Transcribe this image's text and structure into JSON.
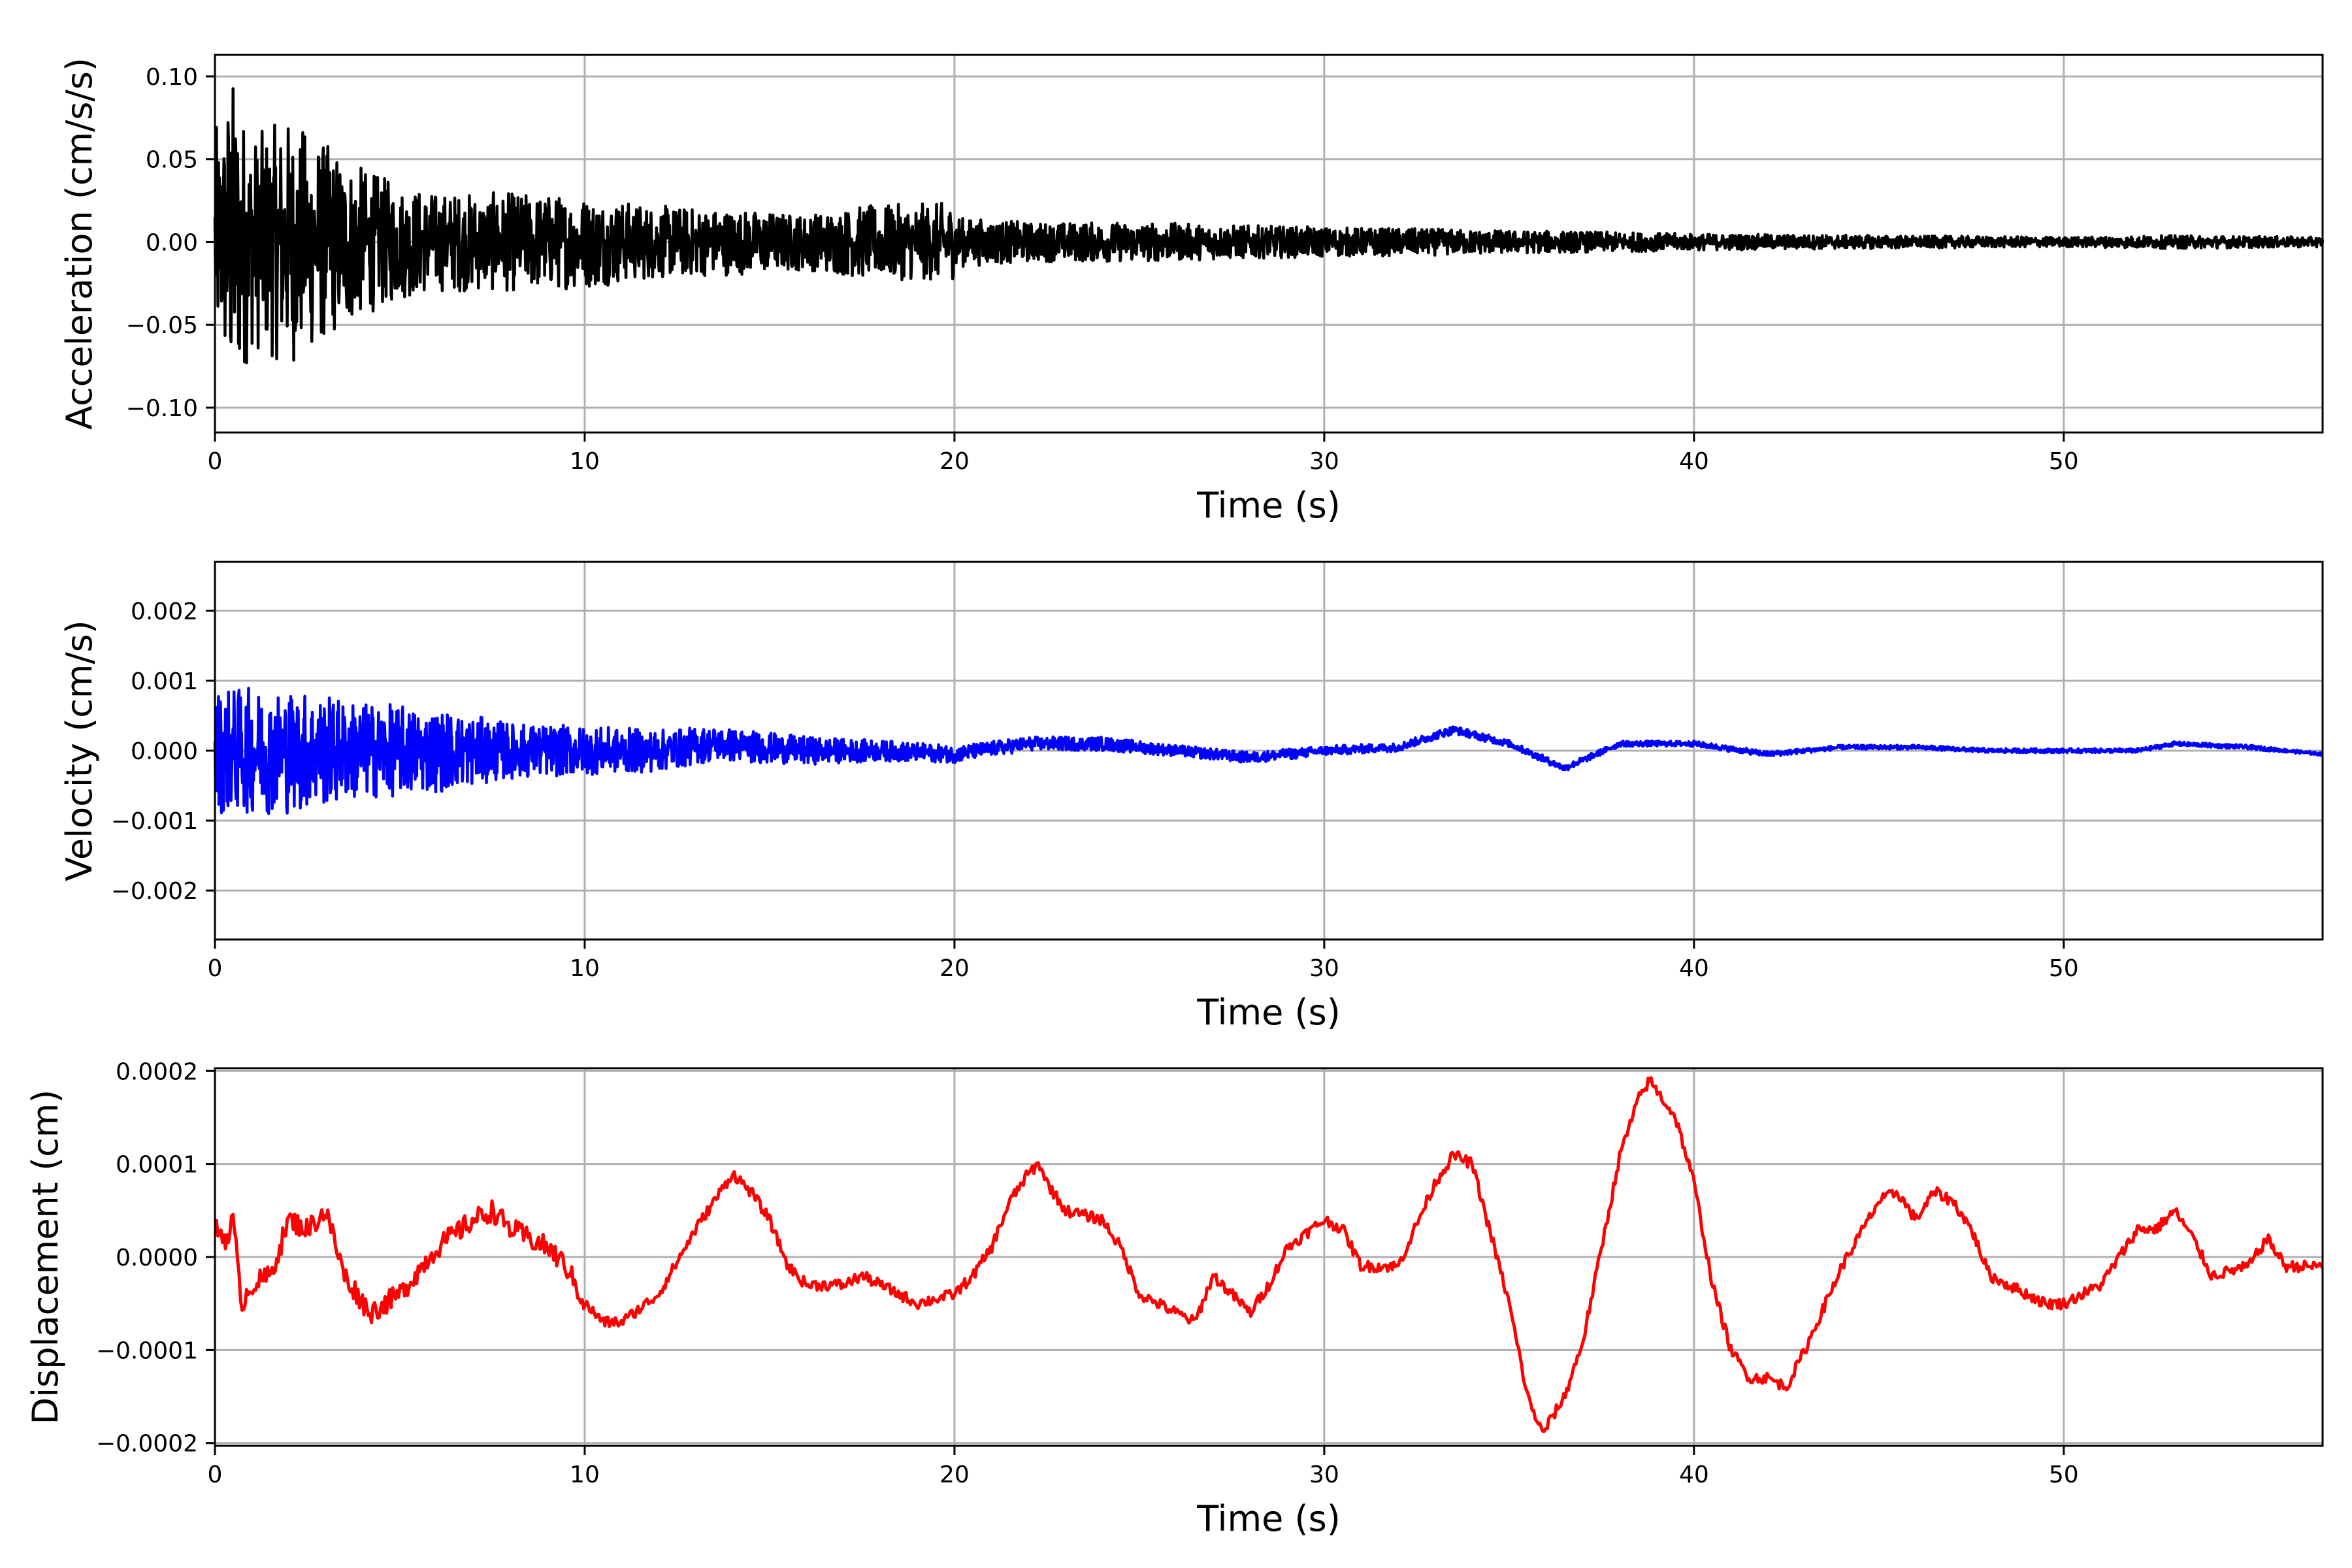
{
  "chart_data": [
    {
      "type": "line",
      "xlabel": "Time (s)",
      "ylabel": "Acceleration (cm/s/s)",
      "xlim": [
        0,
        57
      ],
      "ylim": [
        -0.115,
        0.113
      ],
      "xticks": [
        0,
        10,
        20,
        30,
        40,
        50
      ],
      "yticks": [
        -0.1,
        -0.05,
        0.0,
        0.05,
        0.1
      ],
      "ytick_labels": [
        "−0.10",
        "−0.05",
        "0.00",
        "0.05",
        "0.10"
      ],
      "grid": true,
      "series": [
        {
          "color": "#000000",
          "x": [
            0,
            0.2,
            0.4,
            0.45,
            0.6,
            1.0,
            1.5,
            2.0,
            3.0,
            4.0,
            5.0,
            6.0,
            8.0,
            10.0,
            12.0,
            14.0,
            16.0,
            17.5,
            19.9,
            20.2,
            22.0,
            25.0,
            28.0,
            30.0,
            33.0,
            35.0,
            38.0,
            40.0,
            45.0,
            50.0,
            53.0,
            57.0
          ],
          "amplitude": [
            0.07,
            0.07,
            0.1,
            0.104,
            0.09,
            0.065,
            0.07,
            0.075,
            0.06,
            0.045,
            0.035,
            0.03,
            0.03,
            0.028,
            0.022,
            0.02,
            0.017,
            0.022,
            0.024,
            0.015,
            0.012,
            0.012,
            0.01,
            0.009,
            0.008,
            0.007,
            0.006,
            0.005,
            0.004,
            0.003,
            0.004,
            0.003
          ]
        }
      ]
    },
    {
      "type": "line",
      "xlabel": "Time (s)",
      "ylabel": "Velocity (cm/s)",
      "xlim": [
        0,
        57
      ],
      "ylim": [
        -0.0027,
        0.0027
      ],
      "xticks": [
        0,
        10,
        20,
        30,
        40,
        50
      ],
      "yticks": [
        -0.002,
        -0.001,
        0.0,
        0.001,
        0.002
      ],
      "ytick_labels": [
        "−0.002",
        "−0.001",
        "0.000",
        "0.001",
        "0.002"
      ],
      "grid": true,
      "series": [
        {
          "color": "#0000ff",
          "x": [
            0,
            1,
            2,
            3,
            4,
            6,
            8,
            10,
            12,
            13.5,
            16,
            18,
            20,
            22,
            24,
            26,
            28,
            30,
            32,
            33.5,
            35,
            36.5,
            38,
            40,
            42,
            44,
            46,
            48,
            50,
            52,
            53,
            55,
            57
          ],
          "baseline": [
            0,
            0,
            0,
            0,
            0,
            0,
            0,
            0,
            0,
            0.0001,
            0,
            0,
            -5e-05,
            0.0001,
            0.0001,
            0,
            -0.0001,
            0,
            5e-05,
            0.0003,
            0.0001,
            -0.00025,
            0.0001,
            0.0001,
            -5e-05,
            5e-05,
            5e-05,
            0,
            0,
            0,
            0.0001,
            5e-05,
            -5e-05
          ],
          "amplitude": [
            0.0009,
            0.0009,
            0.0009,
            0.0008,
            0.0007,
            0.0006,
            0.0004,
            0.00035,
            0.0003,
            0.00025,
            0.0002,
            0.00015,
            0.00012,
            0.0001,
            0.0001,
            8e-05,
            8e-05,
            7e-05,
            6e-05,
            6e-05,
            5e-05,
            5e-05,
            4e-05,
            4e-05,
            4e-05,
            3e-05,
            3e-05,
            3e-05,
            3e-05,
            3e-05,
            3e-05,
            3e-05,
            2e-05
          ]
        }
      ]
    },
    {
      "type": "line",
      "xlabel": "Time (s)",
      "ylabel": "Displacement (cm)",
      "xlim": [
        0,
        57
      ],
      "ylim": [
        -0.000203,
        0.000203
      ],
      "xticks": [
        0,
        10,
        20,
        30,
        40,
        50
      ],
      "yticks": [
        -0.0002,
        -0.0001,
        0.0,
        0.0001,
        0.0002
      ],
      "ytick_labels": [
        "−0.0002",
        "−0.0001",
        "0.0000",
        "0.0001",
        "0.0002"
      ],
      "grid": true,
      "series": [
        {
          "color": "#ff0000",
          "x": [
            0,
            0.3,
            0.5,
            0.7,
            1.0,
            1.5,
            2.0,
            2.5,
            3.0,
            3.5,
            4.2,
            5.0,
            6.0,
            7.0,
            7.5,
            8.0,
            9.0,
            9.5,
            10.0,
            10.5,
            11.0,
            12.0,
            13.0,
            13.5,
            14.0,
            14.5,
            15.0,
            15.5,
            16.0,
            17.0,
            17.5,
            18.0,
            19.0,
            20.0,
            20.5,
            21.0,
            21.5,
            22.0,
            22.3,
            22.5,
            23.0,
            24.0,
            24.5,
            25.0,
            26.0,
            26.5,
            27.0,
            27.5,
            28.0,
            28.5,
            29.0,
            30.0,
            30.5,
            31.0,
            32.0,
            33.0,
            33.5,
            34.0,
            35.0,
            35.5,
            35.9,
            36.5,
            37.0,
            37.5,
            38.0,
            38.5,
            38.8,
            39.5,
            40.0,
            40.5,
            41.0,
            41.5,
            42.0,
            42.5,
            43.0,
            44.0,
            45.0,
            45.5,
            46.0,
            46.5,
            47.0,
            47.5,
            48.0,
            48.5,
            49.0,
            49.5,
            50.0,
            51.0,
            52.0,
            52.5,
            53.0,
            53.5,
            54.0,
            55.0,
            55.5,
            56.0,
            57.0
          ],
          "y": [
            3e-05,
            2e-05,
            4e-05,
            -5e-05,
            -3e-05,
            -2e-05,
            4e-05,
            3e-05,
            5e-05,
            -2e-05,
            -6e-05,
            -4e-05,
            1e-05,
            4e-05,
            5e-05,
            3e-05,
            1e-05,
            -1e-05,
            -5e-05,
            -7e-05,
            -7e-05,
            -4e-05,
            3e-05,
            6e-05,
            9e-05,
            7e-05,
            4e-05,
            -1e-05,
            -3e-05,
            -3e-05,
            -2e-05,
            -3e-05,
            -5e-05,
            -4e-05,
            -2e-05,
            1e-05,
            6e-05,
            9e-05,
            0.0001,
            8e-05,
            5e-05,
            4e-05,
            1e-05,
            -4e-05,
            -6e-05,
            -7e-05,
            -2e-05,
            -4e-05,
            -6e-05,
            -3e-05,
            1e-05,
            4e-05,
            3e-05,
            -1e-05,
            -1e-05,
            8e-05,
            0.00011,
            0.0001,
            -5e-05,
            -0.00015,
            -0.00019,
            -0.00015,
            -9e-05,
            1e-05,
            0.00011,
            0.00017,
            0.00019,
            0.00015,
            8e-05,
            -3e-05,
            -0.0001,
            -0.00013,
            -0.00013,
            -0.00014,
            -0.0001,
            -1e-05,
            6e-05,
            7e-05,
            4e-05,
            7e-05,
            6e-05,
            3e-05,
            -2e-05,
            -3e-05,
            -4e-05,
            -5e-05,
            -5e-05,
            -3e-05,
            3e-05,
            3e-05,
            5e-05,
            2e-05,
            -2e-05,
            -1e-05,
            2e-05,
            -1e-05,
            -1e-05
          ]
        }
      ]
    }
  ]
}
